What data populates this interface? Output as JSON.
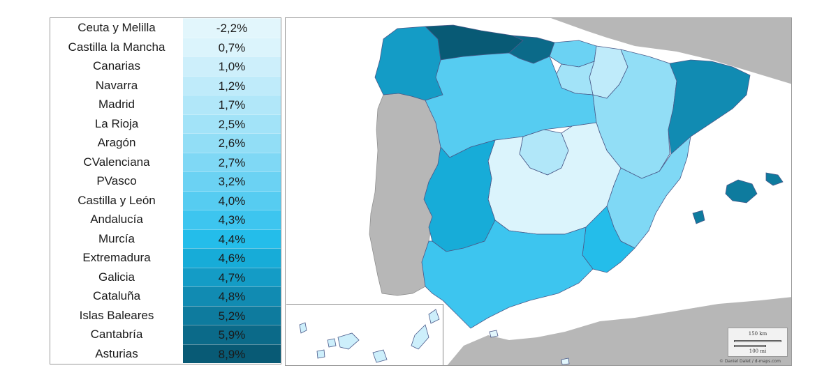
{
  "legend": {
    "rows": [
      {
        "region": "Ceuta y Melilla",
        "value": "-2,2%",
        "color": "#e2f6fc"
      },
      {
        "region": "Castilla la Mancha",
        "value": "0,7%",
        "color": "#dbf4fc"
      },
      {
        "region": "Canarias",
        "value": "1,0%",
        "color": "#cdeffb"
      },
      {
        "region": "Navarra",
        "value": "1,2%",
        "color": "#bfebfa"
      },
      {
        "region": "Madrid",
        "value": "1,7%",
        "color": "#b1e7f9"
      },
      {
        "region": "La Rioja",
        "value": "2,5%",
        "color": "#a2e3f8"
      },
      {
        "region": "Aragón",
        "value": "2,6%",
        "color": "#92def6"
      },
      {
        "region": "CValenciana",
        "value": "2,7%",
        "color": "#7fd8f5"
      },
      {
        "region": "PVasco",
        "value": "3,2%",
        "color": "#6bd2f3"
      },
      {
        "region": "Castilla y León",
        "value": "4,0%",
        "color": "#56ccf1"
      },
      {
        "region": "Andalucía",
        "value": "4,3%",
        "color": "#3dc5ef"
      },
      {
        "region": "Murcía",
        "value": "4,4%",
        "color": "#24bdea"
      },
      {
        "region": "Extremadura",
        "value": "4,6%",
        "color": "#17acd8"
      },
      {
        "region": "Galicia",
        "value": "4,7%",
        "color": "#149cc6"
      },
      {
        "region": "Cataluña",
        "value": "4,8%",
        "color": "#118bb2"
      },
      {
        "region": "Islas Baleares",
        "value": "5,2%",
        "color": "#0e7b9e"
      },
      {
        "region": "Cantabría",
        "value": "5,9%",
        "color": "#0b6a89"
      },
      {
        "region": "Asturias",
        "value": "8,9%",
        "color": "#085a75"
      }
    ]
  },
  "map": {
    "scale_km": "150 km",
    "scale_mi": "100 mi",
    "credit": "© Daniel Dalet / d-maps.com",
    "colors": {
      "sea": "#ffffff",
      "land_other": "#b7b7b7",
      "border": "#4a5a8a"
    }
  }
}
